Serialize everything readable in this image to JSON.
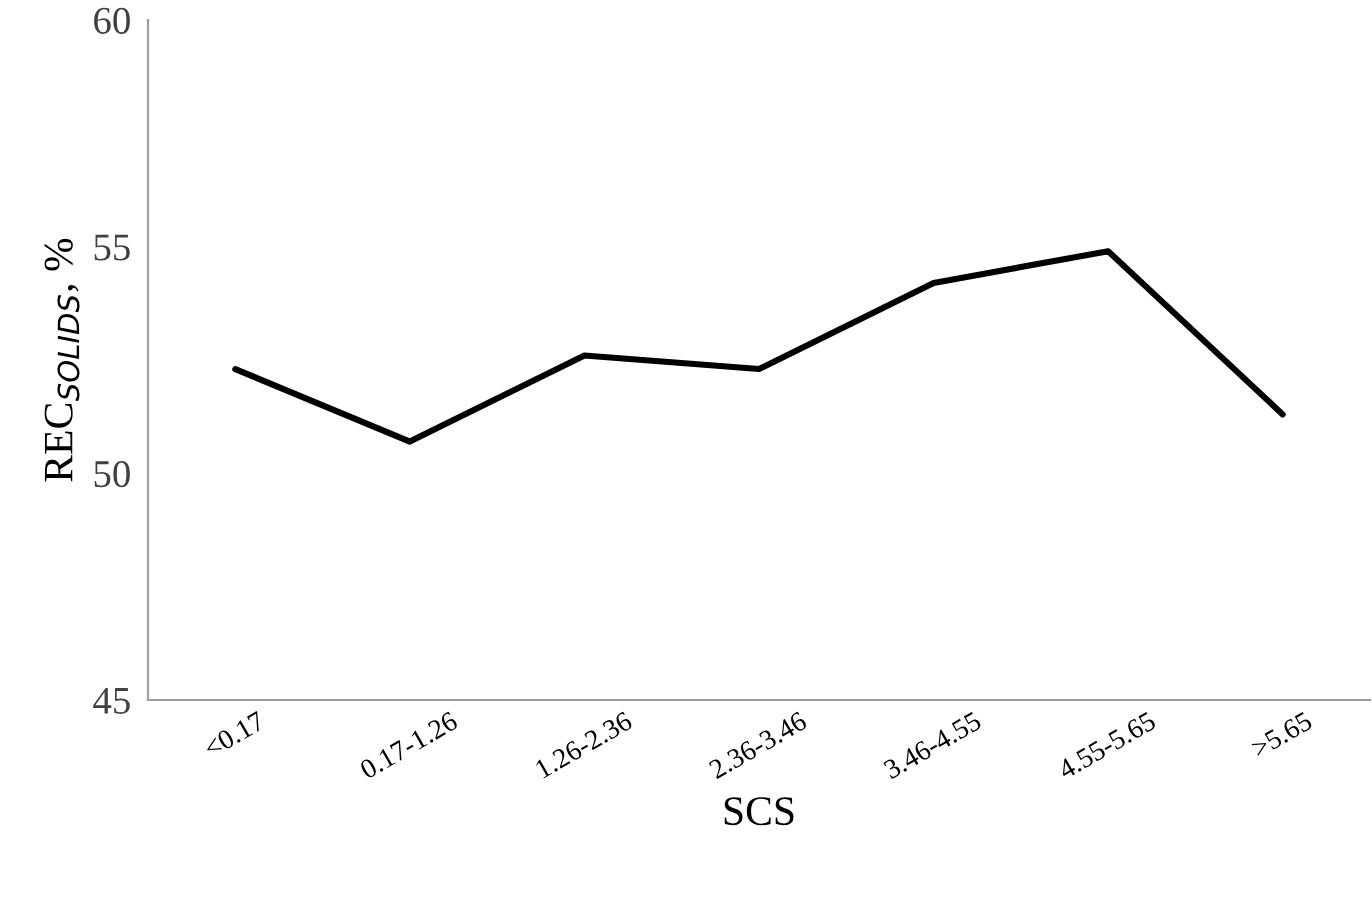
{
  "chart_data": {
    "type": "line",
    "xlabel": "SCS",
    "ylabel": "REC$_{SOLIDS}$, %",
    "categories": [
      "<0.17",
      "0.17-1.26",
      "1.26-2.36",
      "2.36-3.46",
      "3.46-4.55",
      "4.55-5.65",
      ">5.65"
    ],
    "series": [
      {
        "color": "#000000",
        "values": [
          52.3,
          50.7,
          52.6,
          52.3,
          54.2,
          54.9,
          51.3
        ]
      }
    ],
    "ylim": [
      45,
      60
    ],
    "yticks": [
      45,
      50,
      55,
      60
    ],
    "grid": false,
    "legend": false,
    "marker": "none",
    "line_style": "solid"
  }
}
